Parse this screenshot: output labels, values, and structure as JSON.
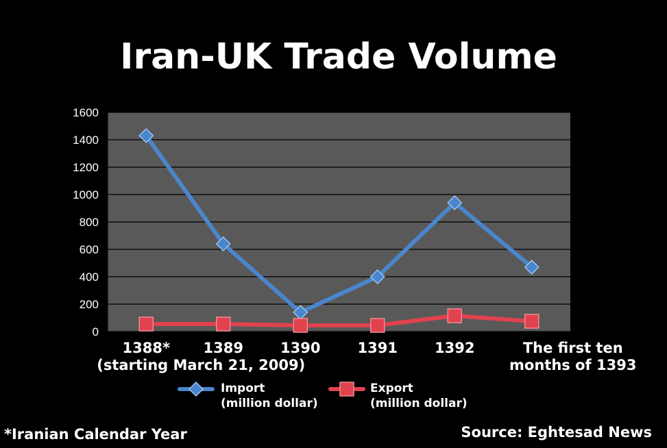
{
  "chart_data": {
    "type": "line",
    "title": "Iran-UK Trade Volume",
    "categories": [
      [
        "1388*",
        "(starting March 21, 2009)"
      ],
      [
        "1389"
      ],
      [
        "1390"
      ],
      [
        "1391"
      ],
      [
        "1392"
      ],
      [
        "The first ten",
        "months of 1393"
      ]
    ],
    "ylim": [
      0,
      1600
    ],
    "yticks": [
      0,
      200,
      400,
      600,
      800,
      1000,
      1200,
      1400,
      1600
    ],
    "grid": true,
    "legend_position": "bottom",
    "series": [
      {
        "name": [
          "Import",
          "(million dollar)"
        ],
        "marker": "diamond",
        "color": "#4a86cd",
        "values": [
          1430,
          640,
          140,
          400,
          940,
          470
        ]
      },
      {
        "name": [
          "Export",
          "(million dollar)"
        ],
        "marker": "square",
        "color": "#e0424e",
        "values": [
          55,
          55,
          45,
          45,
          115,
          75
        ]
      }
    ],
    "plot_background": "#595959"
  },
  "footnote": "*Iranian Calendar Year",
  "source": "Source: Eghtesad News"
}
